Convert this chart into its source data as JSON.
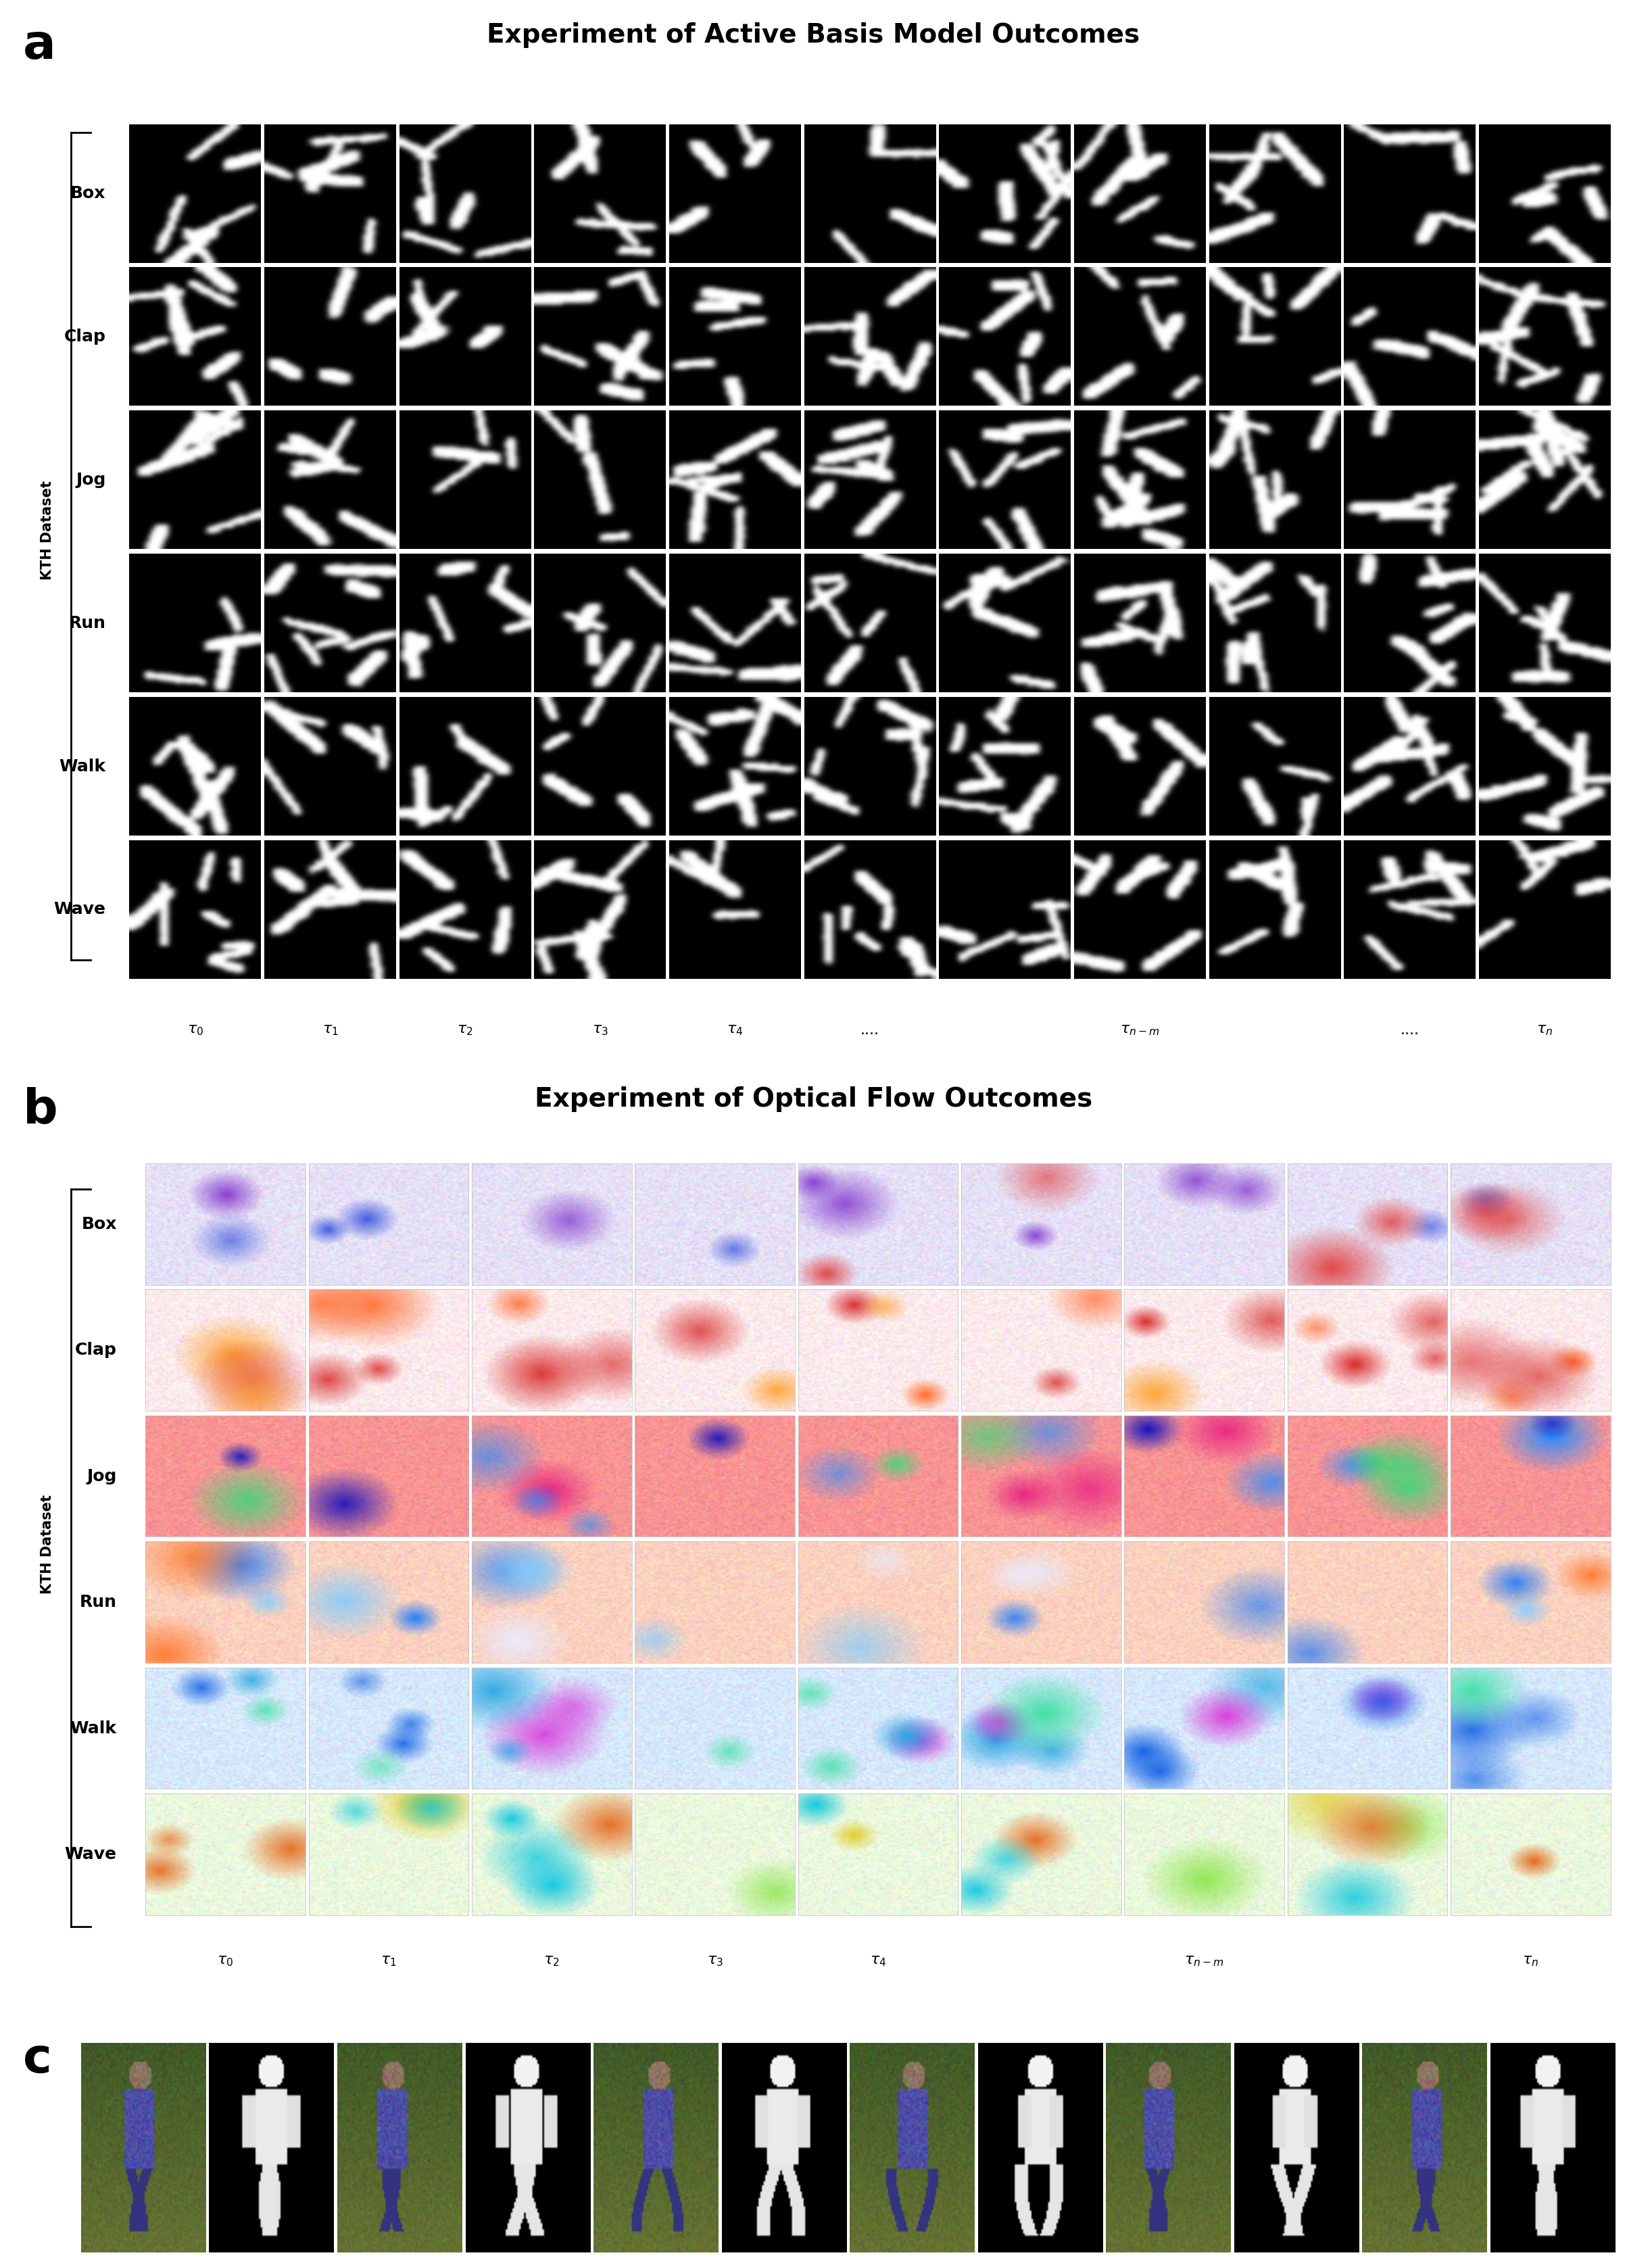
{
  "title_a": "Experiment of Active Basis Model Outcomes",
  "title_b": "Experiment of Optical Flow Outcomes",
  "panel_a_label": "a",
  "panel_b_label": "b",
  "panel_c_label": "c",
  "row_labels_ab": [
    "Box",
    "Clap",
    "Jog",
    "Run",
    "Walk",
    "Wave"
  ],
  "tau_labels_a": [
    "$\\tau_0$",
    "$\\tau_1$",
    "$\\tau_2$",
    "$\\tau_3$",
    "$\\tau_4$",
    "....",
    "$\\tau_{n-m}$",
    "....",
    "$\\tau_n$"
  ],
  "tau_cols_a": [
    0,
    1,
    2,
    3,
    4,
    5,
    7,
    9,
    10
  ],
  "tau_labels_b": [
    "$\\tau_0$",
    "$\\tau_1$",
    "$\\tau_2$",
    "$\\tau_3$",
    "$\\tau_4$",
    "$\\tau_{n-m}$",
    "$\\tau_n$"
  ],
  "tau_cols_b": [
    0,
    1,
    2,
    3,
    4,
    6,
    8
  ],
  "n_rows": 6,
  "n_cols_a": 11,
  "n_cols_b": 9,
  "n_cols_c": 12,
  "ylabel": "KTH Dataset",
  "title_fontsize": 28,
  "label_fontsize": 52,
  "row_label_fontsize": 18,
  "tick_label_fontsize": 16,
  "kth_fontsize": 15
}
